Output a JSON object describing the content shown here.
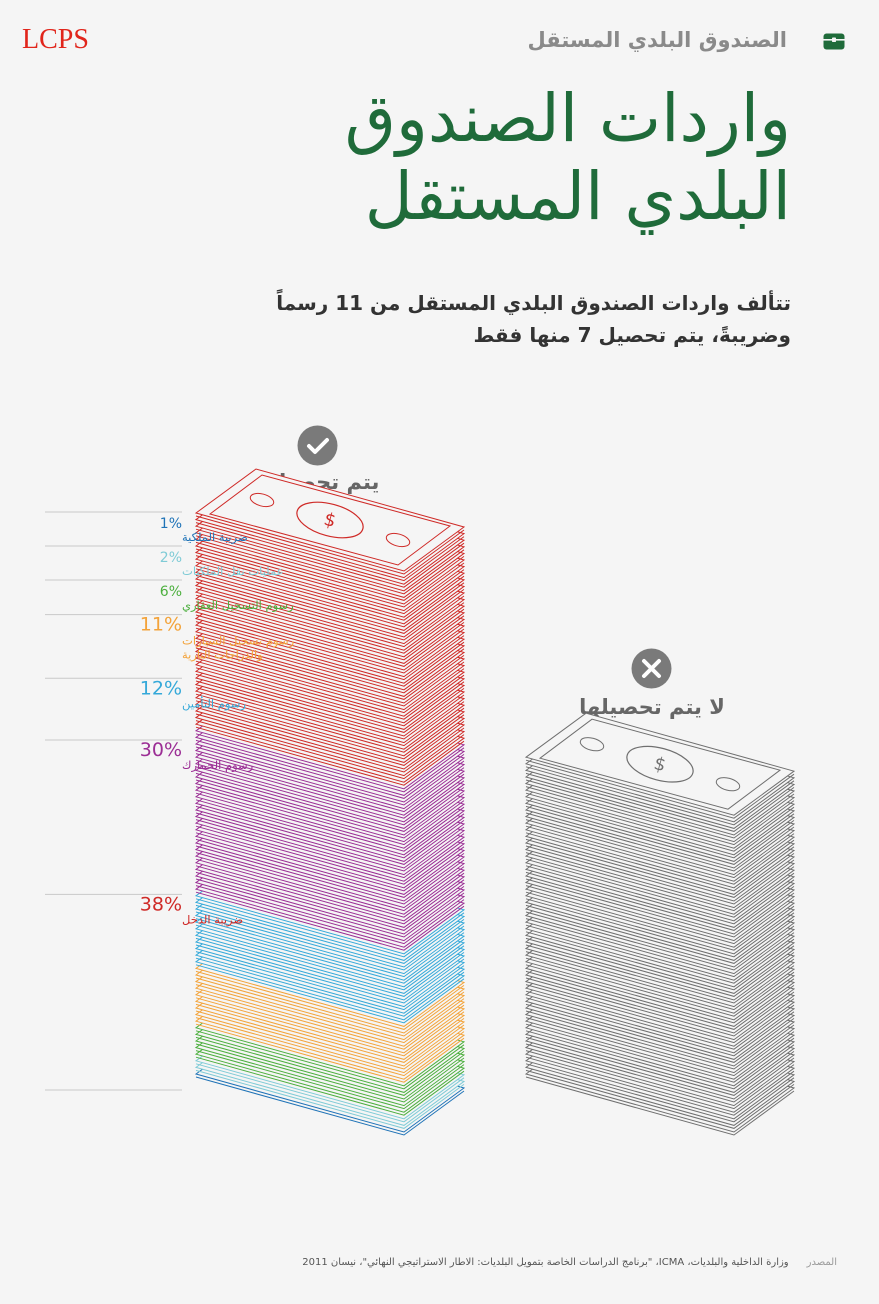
{
  "header": {
    "logo": "LCPS",
    "section_title": "الصندوق البلدي المستقل",
    "icon": "chest-icon",
    "accent_color": "#1f6b3a",
    "logo_color": "#e1251b"
  },
  "title": {
    "line1": "واردات الصندوق",
    "line2": "البلدي المستقل"
  },
  "subtitle": {
    "line1": "تتألف واردات الصندوق البلدي المستقل من 11 رسماً",
    "line2": "وضريبةً، يتم تحصيل 7 منها فقط"
  },
  "collected": {
    "label": "يتم تحصيلها",
    "icon": "check-circle-icon"
  },
  "not_collected": {
    "label": "لا يتم تحصيلها",
    "icon": "x-circle-icon"
  },
  "chart_data": {
    "type": "bar",
    "segments": [
      {
        "name": "ضريبة الملكية",
        "value": 1,
        "label": "1%",
        "color": "#1f73b7"
      },
      {
        "name": "عمليات نقل الملكيات",
        "value": 2,
        "label": "2%",
        "color": "#7fcbd6"
      },
      {
        "name": "رسوم التسجيل العقاري",
        "value": 6,
        "label": "6%",
        "color": "#4caf3e"
      },
      {
        "name": "رسوم تسجيل السيارات والدراجات النارية",
        "value": 11,
        "label": "11%",
        "color": "#f3a33a"
      },
      {
        "name": "رسوم التأمين",
        "value": 12,
        "label": "12%",
        "color": "#35a9d9"
      },
      {
        "name": "رسوم الجمارك",
        "value": 30,
        "label": "30%",
        "color": "#9b2e95"
      },
      {
        "name": "ضريبة الدخل",
        "value": 38,
        "label": "38%",
        "color": "#cf2a27"
      }
    ]
  },
  "source": {
    "key": "المصدر",
    "text": "وزارة الداخلية والبلديات، ICMA، \"برنامج الدراسات الخاصة بتمويل البلديات: الاطار الاستراتيجي النهائي\"، نيسان 2011"
  }
}
